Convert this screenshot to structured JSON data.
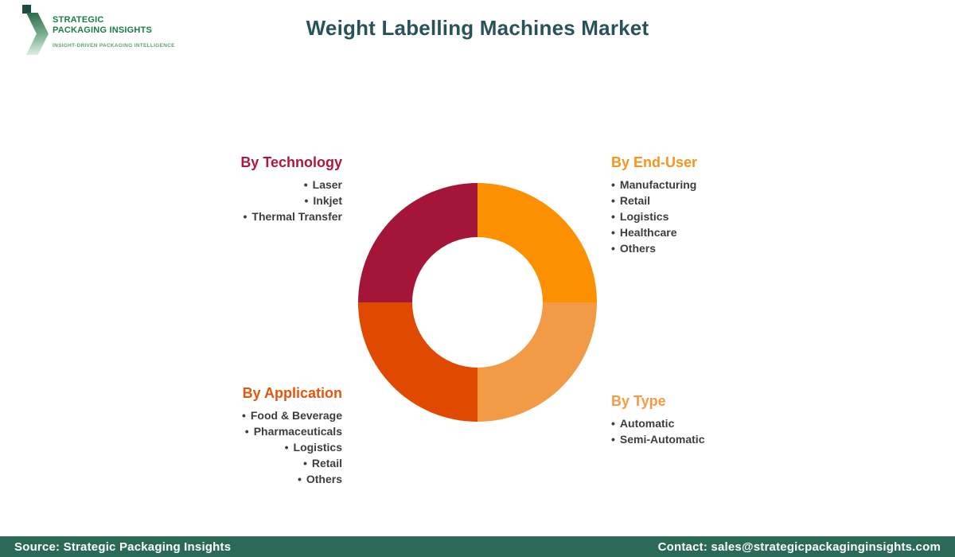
{
  "theme": {
    "bullet": "•",
    "item_color": "#3d3d3d",
    "background": "#ffffff"
  },
  "logo": {
    "line1": "STRATEGIC",
    "line2": "PACKAGING INSIGHTS",
    "tagline": "INSIGHT-DRIVEN PACKAGING INTELLIGENCE",
    "text_color": "#1a7d4a",
    "tagline_color": "#5aa273",
    "accent_square_color": "#1e4a44",
    "chevron_gradient": [
      "#2a6b4a",
      "#e6f1e9"
    ]
  },
  "header": {
    "title": "Weight Labelling Machines Market",
    "title_color": "#28535a"
  },
  "chart_data": {
    "type": "pie",
    "donut": true,
    "inner_radius_ratio": 0.55,
    "start_angle_deg": 0,
    "legend_position": "around",
    "segments": [
      {
        "name": "By End-User",
        "value": 25,
        "color": "#fb9100",
        "quadrant": "top-right"
      },
      {
        "name": "By Type",
        "value": 25,
        "color": "#f29a45",
        "quadrant": "bottom-right"
      },
      {
        "name": "By Application",
        "value": 25,
        "color": "#e04a00",
        "quadrant": "bottom-left"
      },
      {
        "name": "By Technology",
        "value": 25,
        "color": "#a41538",
        "quadrant": "top-left"
      }
    ]
  },
  "categories": [
    {
      "title": "By Technology",
      "title_color": "#b0173f",
      "align": "right",
      "items": [
        "Laser",
        "Inkjet",
        "Thermal Transfer"
      ]
    },
    {
      "title": "By End-User",
      "title_color": "#f7941d",
      "align": "left",
      "items": [
        "Manufacturing",
        "Retail",
        "Logistics",
        "Healthcare",
        "Others"
      ]
    },
    {
      "title": "By Application",
      "title_color": "#e4560e",
      "align": "right",
      "items": [
        "Food & Beverage",
        "Pharmaceuticals",
        "Logistics",
        "Retail",
        "Others"
      ]
    },
    {
      "title": "By Type",
      "title_color": "#f59b45",
      "align": "left",
      "items": [
        "Automatic",
        "Semi-Automatic"
      ]
    }
  ],
  "footer": {
    "source": "Source: Strategic Packaging Insights",
    "contact": "Contact: sales@strategicpackaginginsights.com",
    "bg": "#2b6a57"
  }
}
